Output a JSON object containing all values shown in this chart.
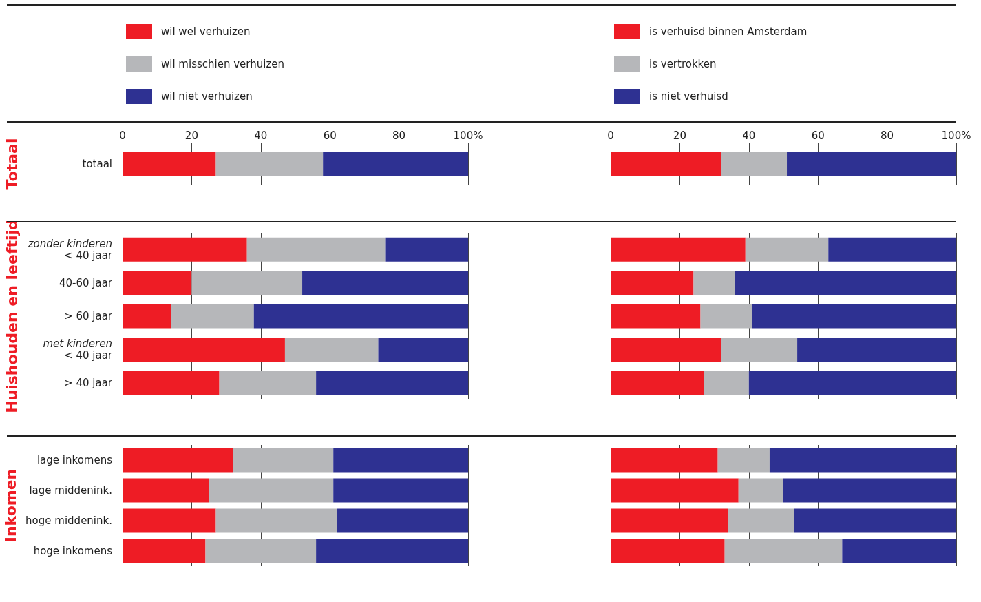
{
  "chart_data": [
    {
      "type": "bar",
      "orientation": "horizontal",
      "stacked": true,
      "ylabel": "Totaal",
      "categories": [
        "totaal"
      ],
      "series": [
        {
          "name": "wil wel verhuizen",
          "color": "#ee1c25",
          "values": [
            27
          ]
        },
        {
          "name": "wil misschien verhuizen",
          "color": "#b6b7ba",
          "values": [
            31
          ]
        },
        {
          "name": "wil niet verhuizen",
          "color": "#2e3192",
          "values": [
            42
          ]
        }
      ],
      "xlim": [
        0,
        100
      ],
      "xticks": [
        0,
        20,
        40,
        60,
        80,
        {
          "value": 100,
          "label": "100%"
        }
      ],
      "grid": "x",
      "legend": "top left"
    },
    {
      "type": "bar",
      "orientation": "horizontal",
      "stacked": true,
      "categories": [
        null
      ],
      "series": [
        {
          "name": "is verhuisd binnen Amsterdam",
          "color": "#ee1c25",
          "values": [
            32
          ]
        },
        {
          "name": "is vertrokken",
          "color": "#b6b7ba",
          "values": [
            19
          ]
        },
        {
          "name": "is niet verhuisd",
          "color": "#2e3192",
          "values": [
            49
          ]
        }
      ],
      "xlim": [
        0,
        100
      ],
      "xticks": [
        0,
        20,
        40,
        60,
        80,
        {
          "value": 100,
          "label": "100%"
        }
      ],
      "grid": "x",
      "legend": "top left",
      "tick_labels": "x"
    },
    {
      "type": "bar",
      "orientation": "horizontal",
      "stacked": true,
      "ylabel": "Huishouden en leeftijd",
      "categories": [
        "zonder kinderen\n< 40 jaar",
        "40-60 jaar",
        "> 60 jaar",
        "met kinderen\n< 40 jaar",
        "> 40 jaar"
      ],
      "series": [
        {
          "color": "#ee1c25",
          "values": [
            36,
            20,
            14,
            47,
            28
          ]
        },
        {
          "color": "#b6b7ba",
          "values": [
            40,
            32,
            24,
            27,
            28
          ]
        },
        {
          "color": "#2e3192",
          "values": [
            24,
            48,
            62,
            26,
            44
          ]
        }
      ],
      "xlim": [
        0,
        100
      ],
      "xticks": [
        0,
        20,
        40,
        60,
        80,
        100
      ],
      "grid": "x",
      "tick_labels": "y"
    },
    {
      "type": "bar",
      "orientation": "horizontal",
      "stacked": true,
      "categories": [
        null,
        null,
        null,
        null,
        null
      ],
      "series": [
        {
          "color": "#ee1c25",
          "values": [
            39,
            24,
            26,
            32,
            27
          ]
        },
        {
          "color": "#b6b7ba",
          "values": [
            24,
            12,
            15,
            22,
            13
          ]
        },
        {
          "color": "#2e3192",
          "values": [
            37,
            64,
            59,
            46,
            60
          ]
        }
      ],
      "xlim": [
        0,
        100
      ],
      "xticks": [
        0,
        20,
        40,
        60,
        80,
        100
      ],
      "grid": "x",
      "tick_labels": false
    },
    {
      "type": "bar",
      "orientation": "horizontal",
      "stacked": true,
      "ylabel": "Inkomen",
      "categories": [
        "lage inkomens",
        "lage middenink.",
        "hoge middenink.",
        "hoge inkomens"
      ],
      "series": [
        {
          "color": "#ee1c25",
          "values": [
            32,
            25,
            27,
            24
          ]
        },
        {
          "color": "#b6b7ba",
          "values": [
            29,
            36,
            35,
            32
          ]
        },
        {
          "color": "#2e3192",
          "values": [
            39,
            39,
            38,
            44
          ]
        }
      ],
      "xlim": [
        0,
        100
      ],
      "xticks": [
        0,
        20,
        40,
        60,
        80,
        100
      ],
      "grid": "x",
      "tick_labels": "y"
    },
    {
      "type": "bar",
      "orientation": "horizontal",
      "stacked": true,
      "categories": [
        null,
        null,
        null,
        null
      ],
      "series": [
        {
          "color": "#ee1c25",
          "values": [
            31,
            37,
            34,
            33
          ]
        },
        {
          "color": "#b6b7ba",
          "values": [
            15,
            13,
            19,
            34
          ]
        },
        {
          "color": "#2e3192",
          "values": [
            54,
            50,
            47,
            33
          ]
        }
      ],
      "xlim": [
        0,
        100
      ],
      "xticks": [
        0,
        20,
        40,
        60,
        80,
        100
      ],
      "grid": "x",
      "tick_labels": false
    }
  ]
}
